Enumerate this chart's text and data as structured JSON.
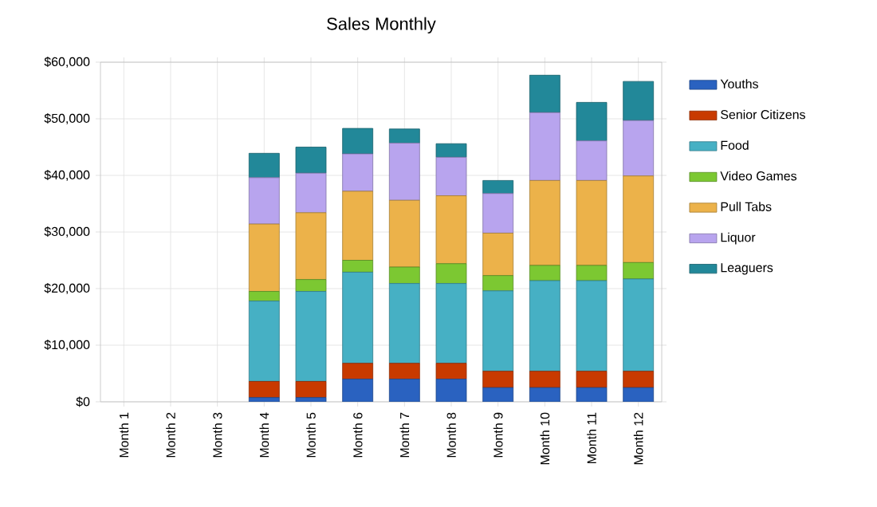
{
  "chart_data": {
    "type": "bar",
    "stacked": true,
    "title": "Sales Monthly",
    "categories": [
      "Month 1",
      "Month 2",
      "Month 3",
      "Month 4",
      "Month 5",
      "Month 6",
      "Month 7",
      "Month 8",
      "Month 9",
      "Month 10",
      "Month 11",
      "Month 12"
    ],
    "series": [
      {
        "name": "Youths",
        "color": "#2a62c0",
        "values": [
          0,
          0,
          0,
          750,
          750,
          4000,
          4000,
          4000,
          2500,
          2500,
          2500,
          2500
        ]
      },
      {
        "name": "Senior Citizens",
        "color": "#c83a00",
        "values": [
          0,
          0,
          0,
          2850,
          2850,
          2800,
          2800,
          2800,
          2900,
          2900,
          2900,
          2900
        ]
      },
      {
        "name": "Food",
        "color": "#46b0c4",
        "values": [
          0,
          0,
          0,
          14200,
          15900,
          16100,
          14100,
          14100,
          14200,
          16000,
          16000,
          16300
        ]
      },
      {
        "name": "Video Games",
        "color": "#7cc832",
        "values": [
          0,
          0,
          0,
          1700,
          2100,
          2100,
          2900,
          3500,
          2700,
          2700,
          2700,
          2900
        ]
      },
      {
        "name": "Pull Tabs",
        "color": "#ecb24a",
        "values": [
          0,
          0,
          0,
          11900,
          11800,
          12200,
          11800,
          12000,
          7500,
          15000,
          15000,
          15300
        ]
      },
      {
        "name": "Liquor",
        "color": "#b8a4ee",
        "values": [
          0,
          0,
          0,
          8200,
          7000,
          6600,
          10100,
          6800,
          7000,
          12000,
          7000,
          9800
        ]
      },
      {
        "name": "Leaguers",
        "color": "#228899",
        "values": [
          0,
          0,
          0,
          4300,
          4600,
          4500,
          2500,
          2400,
          2300,
          6600,
          6800,
          6900
        ]
      }
    ],
    "ylim": [
      0,
      60000
    ],
    "yticks": [
      {
        "value": 0,
        "label": "$0"
      },
      {
        "value": 10000,
        "label": "$10,000"
      },
      {
        "value": 20000,
        "label": "$20,000"
      },
      {
        "value": 30000,
        "label": "$30,000"
      },
      {
        "value": 40000,
        "label": "$40,000"
      },
      {
        "value": 50000,
        "label": "$50,000"
      },
      {
        "value": 60000,
        "label": "$60,000"
      }
    ],
    "grid": true,
    "legend": "right"
  }
}
